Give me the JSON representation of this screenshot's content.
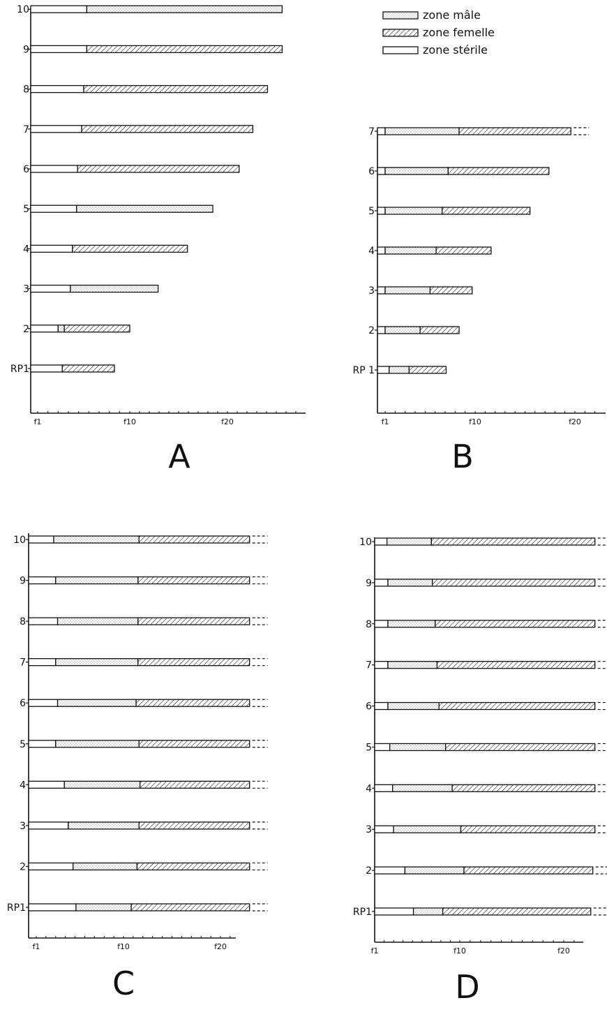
{
  "legend": [
    {
      "key": "male",
      "label": "zone mâle"
    },
    {
      "key": "female",
      "label": "zone femelle"
    },
    {
      "key": "sterile",
      "label": "zone stérile"
    }
  ],
  "chart_data": [
    {
      "type": "bar",
      "orientation": "horizontal-stacked",
      "panel_label": "A",
      "x_ticks": [
        "f1",
        "f10",
        "f20"
      ],
      "xlim": [
        1,
        27.5
      ],
      "categories": [
        "RP1",
        "2",
        "3",
        "4",
        "5",
        "6",
        "7",
        "8",
        "9",
        "10"
      ],
      "rows": [
        {
          "label": "RP1",
          "sterile_end": 3.4,
          "male_end": 3.4,
          "female_end": 8.5
        },
        {
          "label": "2",
          "sterile_end": 3.0,
          "male_end": 3.6,
          "female_end": 10.0
        },
        {
          "label": "3",
          "sterile_end": 4.2,
          "male_end": 12.9,
          "female_end": 12.9
        },
        {
          "label": "4",
          "sterile_end": 4.4,
          "male_end": 4.4,
          "female_end": 15.9
        },
        {
          "label": "5",
          "sterile_end": 4.8,
          "male_end": 18.5,
          "female_end": 18.5
        },
        {
          "label": "6",
          "sterile_end": 4.9,
          "male_end": 4.9,
          "female_end": 21.2
        },
        {
          "label": "7",
          "sterile_end": 5.3,
          "male_end": 5.3,
          "female_end": 22.6
        },
        {
          "label": "8",
          "sterile_end": 5.5,
          "male_end": 5.5,
          "female_end": 24.1
        },
        {
          "label": "9",
          "sterile_end": 5.8,
          "male_end": 5.8,
          "female_end": 25.6
        },
        {
          "label": "10",
          "sterile_end": 5.8,
          "male_end": 25.6,
          "female_end": 25.6
        }
      ]
    },
    {
      "type": "bar",
      "orientation": "horizontal-stacked",
      "panel_label": "B",
      "x_ticks": [
        "f1",
        "f10",
        "f20"
      ],
      "xlim": [
        1,
        22
      ],
      "categories": [
        "RP 1",
        "2",
        "3",
        "4",
        "5",
        "6",
        "7"
      ],
      "rows": [
        {
          "label": "RP 1",
          "sterile_end": 1.4,
          "male_end": 3.4,
          "female_end": 7.1,
          "continues": false
        },
        {
          "label": "2",
          "sterile_end": 1.0,
          "male_end": 4.5,
          "female_end": 8.4,
          "continues": false
        },
        {
          "label": "3",
          "sterile_end": 1.0,
          "male_end": 5.5,
          "female_end": 9.7,
          "continues": false
        },
        {
          "label": "4",
          "sterile_end": 1.0,
          "male_end": 6.1,
          "female_end": 11.6,
          "continues": false
        },
        {
          "label": "5",
          "sterile_end": 1.0,
          "male_end": 6.7,
          "female_end": 15.5,
          "continues": false
        },
        {
          "label": "6",
          "sterile_end": 1.0,
          "male_end": 7.3,
          "female_end": 17.4,
          "continues": false
        },
        {
          "label": "7",
          "sterile_end": 1.0,
          "male_end": 8.4,
          "female_end": 19.6,
          "continues": true
        }
      ]
    },
    {
      "type": "bar",
      "orientation": "horizontal-stacked",
      "panel_label": "C",
      "x_ticks": [
        "f1",
        "f10",
        "f20"
      ],
      "xlim": [
        1,
        22
      ],
      "categories": [
        "RP1",
        "2",
        "3",
        "4",
        "5",
        "6",
        "7",
        "8",
        "9",
        "10"
      ],
      "rows": [
        {
          "label": "RP1",
          "sterile_end": 5.1,
          "male_end": 10.8,
          "female_end": 23.0,
          "continues": true
        },
        {
          "label": "2",
          "sterile_end": 4.8,
          "male_end": 11.4,
          "female_end": 23.0,
          "continues": true
        },
        {
          "label": "3",
          "sterile_end": 4.3,
          "male_end": 11.6,
          "female_end": 23.0,
          "continues": true
        },
        {
          "label": "4",
          "sterile_end": 3.9,
          "male_end": 11.7,
          "female_end": 23.0,
          "continues": true
        },
        {
          "label": "5",
          "sterile_end": 3.0,
          "male_end": 11.6,
          "female_end": 23.0,
          "continues": true
        },
        {
          "label": "6",
          "sterile_end": 3.2,
          "male_end": 11.3,
          "female_end": 23.0,
          "continues": true
        },
        {
          "label": "7",
          "sterile_end": 3.0,
          "male_end": 11.5,
          "female_end": 23.0,
          "continues": true
        },
        {
          "label": "8",
          "sterile_end": 3.2,
          "male_end": 11.5,
          "female_end": 23.0,
          "continues": true
        },
        {
          "label": "9",
          "sterile_end": 3.0,
          "male_end": 11.5,
          "female_end": 23.0,
          "continues": true
        },
        {
          "label": "10",
          "sterile_end": 2.8,
          "male_end": 11.6,
          "female_end": 23.0,
          "continues": true
        }
      ]
    },
    {
      "type": "bar",
      "orientation": "horizontal-stacked",
      "panel_label": "D",
      "x_ticks": [
        "f1",
        "f10",
        "f20"
      ],
      "xlim": [
        1,
        22
      ],
      "categories": [
        "RP1",
        "2",
        "3",
        "4",
        "5",
        "6",
        "7",
        "8",
        "9",
        "10"
      ],
      "rows": [
        {
          "label": "RP1",
          "sterile_end": 5.1,
          "male_end": 8.2,
          "female_end": 22.6,
          "continues": true
        },
        {
          "label": "2",
          "sterile_end": 4.2,
          "male_end": 10.4,
          "female_end": 22.8,
          "continues": true
        },
        {
          "label": "3",
          "sterile_end": 3.0,
          "male_end": 10.1,
          "female_end": 23.0,
          "continues": true
        },
        {
          "label": "4",
          "sterile_end": 2.9,
          "male_end": 9.2,
          "female_end": 23.0,
          "continues": true
        },
        {
          "label": "5",
          "sterile_end": 2.6,
          "male_end": 8.5,
          "female_end": 23.0,
          "continues": true
        },
        {
          "label": "6",
          "sterile_end": 2.4,
          "male_end": 7.8,
          "female_end": 23.0,
          "continues": true
        },
        {
          "label": "7",
          "sterile_end": 2.4,
          "male_end": 7.6,
          "female_end": 23.0,
          "continues": true
        },
        {
          "label": "8",
          "sterile_end": 2.4,
          "male_end": 7.4,
          "female_end": 23.0,
          "continues": true
        },
        {
          "label": "9",
          "sterile_end": 2.4,
          "male_end": 7.1,
          "female_end": 23.0,
          "continues": true
        },
        {
          "label": "10",
          "sterile_end": 2.3,
          "male_end": 7.0,
          "female_end": 23.0,
          "continues": true
        }
      ]
    }
  ]
}
